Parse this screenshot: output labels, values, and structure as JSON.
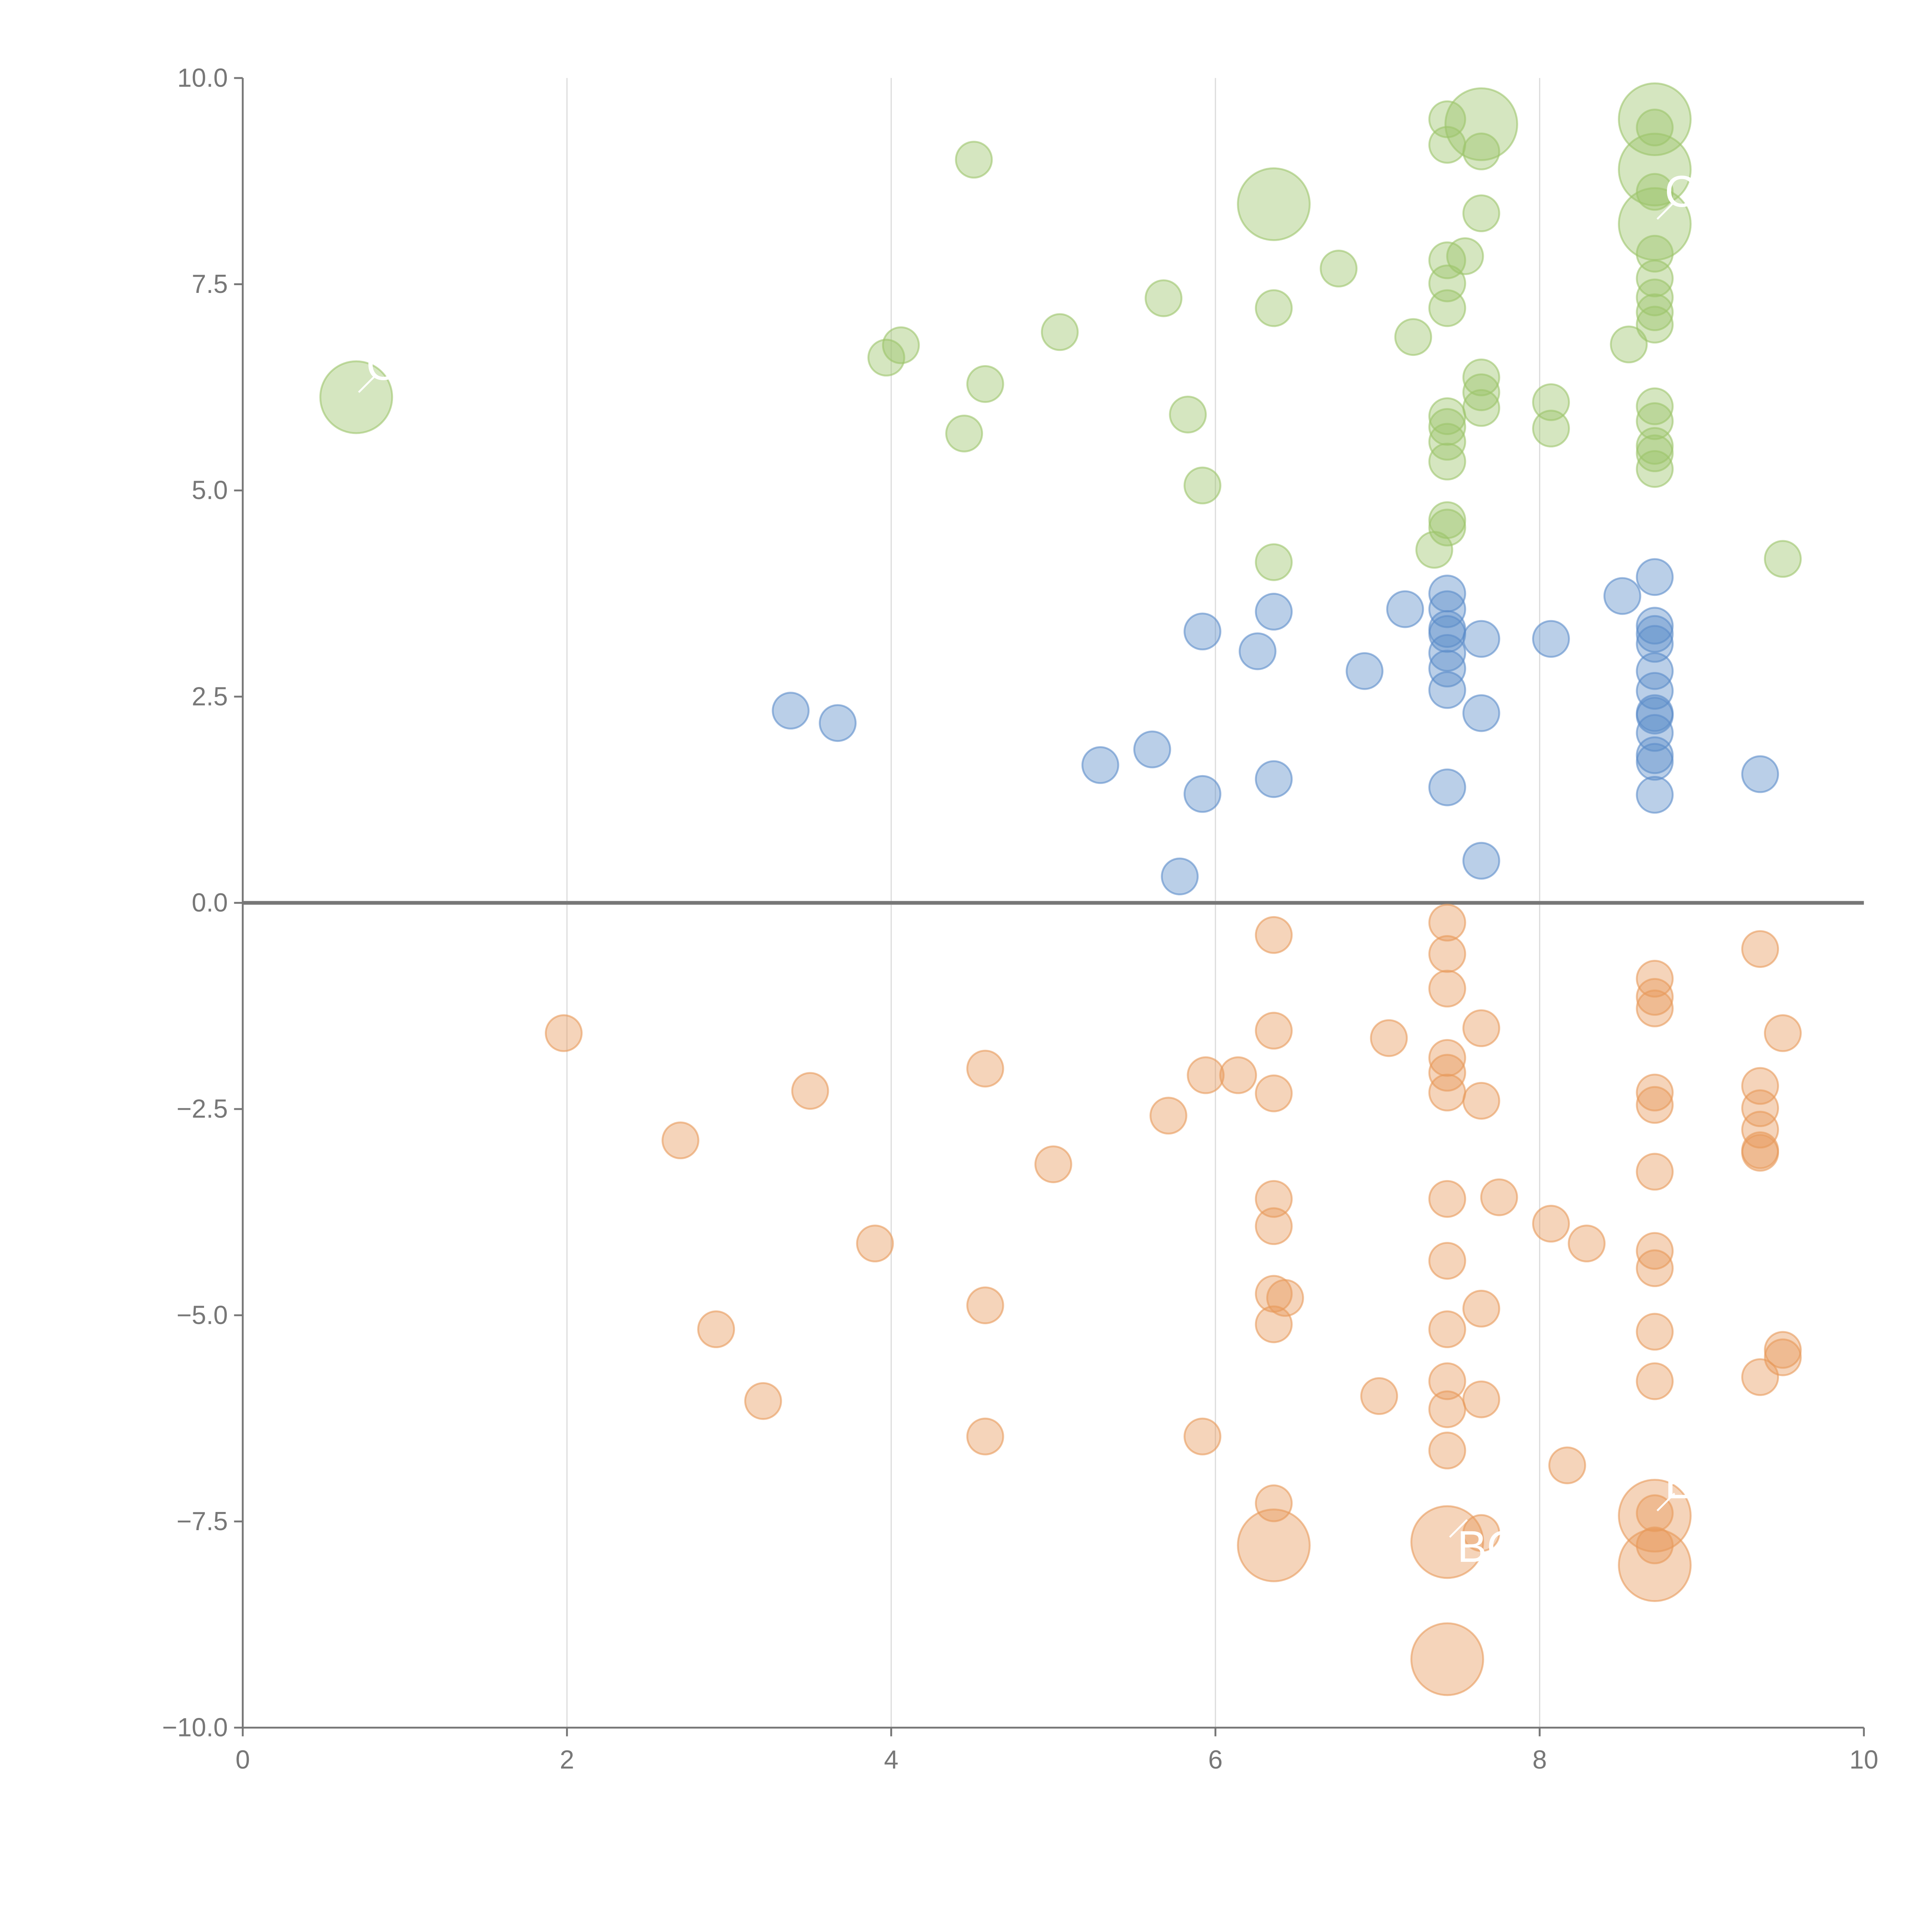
{
  "chart_data": {
    "type": "scatter",
    "title": "",
    "xlabel": "",
    "ylabel": "",
    "xlim": [
      0,
      10
    ],
    "ylim": [
      -10,
      10
    ],
    "grid": "vertical lines at x ticks",
    "legend": "none",
    "x_ticks": [
      "0",
      "2",
      "4",
      "6",
      "8",
      "10"
    ],
    "y_ticks": [
      "10.0",
      "7.5",
      "5.0",
      "2.5",
      "0.0",
      "−2.5",
      "−5.0",
      "−7.5",
      "−10.0"
    ],
    "point_format": "[x, y, relative_size]",
    "series": [
      {
        "name": "green",
        "color": "#9cc46a",
        "points": [
          [
            7.43,
            9.5,
            1
          ],
          [
            7.64,
            9.44,
            4
          ],
          [
            8.71,
            9.5,
            4
          ],
          [
            7.43,
            9.19,
            1
          ],
          [
            7.64,
            9.11,
            1
          ],
          [
            8.71,
            9.4,
            1
          ],
          [
            4.51,
            9.01,
            1
          ],
          [
            6.36,
            8.47,
            4
          ],
          [
            8.71,
            8.89,
            4
          ],
          [
            8.71,
            8.62,
            1
          ],
          [
            8.71,
            8.23,
            4
          ],
          [
            7.64,
            8.36,
            1
          ],
          [
            7.43,
            7.79,
            1
          ],
          [
            7.54,
            7.84,
            1
          ],
          [
            6.76,
            7.69,
            1
          ],
          [
            8.71,
            7.87,
            1
          ],
          [
            8.71,
            7.57,
            1
          ],
          [
            7.43,
            7.51,
            1
          ],
          [
            5.68,
            7.33,
            1
          ],
          [
            6.36,
            7.21,
            1
          ],
          [
            7.43,
            7.21,
            1
          ],
          [
            8.71,
            7.34,
            1
          ],
          [
            8.71,
            7.16,
            1
          ],
          [
            8.71,
            7.01,
            1
          ],
          [
            7.22,
            6.86,
            1
          ],
          [
            4.06,
            6.76,
            1
          ],
          [
            3.97,
            6.61,
            1
          ],
          [
            5.04,
            6.92,
            1
          ],
          [
            8.55,
            6.77,
            1
          ],
          [
            0.7,
            6.13,
            4
          ],
          [
            4.58,
            6.29,
            1
          ],
          [
            7.64,
            6.37,
            1
          ],
          [
            7.64,
            6.19,
            1
          ],
          [
            7.64,
            6.0,
            1
          ],
          [
            8.07,
            6.07,
            1
          ],
          [
            8.07,
            5.75,
            1
          ],
          [
            5.83,
            5.92,
            1
          ],
          [
            7.43,
            5.9,
            1
          ],
          [
            7.43,
            5.77,
            1
          ],
          [
            8.71,
            6.02,
            1
          ],
          [
            8.71,
            5.84,
            1
          ],
          [
            8.71,
            5.54,
            1
          ],
          [
            8.71,
            5.45,
            1
          ],
          [
            8.71,
            5.26,
            1
          ],
          [
            7.43,
            5.59,
            1
          ],
          [
            7.43,
            5.35,
            1
          ],
          [
            4.45,
            5.69,
            1
          ],
          [
            5.92,
            5.06,
            1
          ],
          [
            7.43,
            4.64,
            1
          ],
          [
            7.43,
            4.55,
            1
          ],
          [
            7.35,
            4.28,
            1
          ],
          [
            6.36,
            4.13,
            1
          ],
          [
            9.5,
            4.17,
            1
          ]
        ]
      },
      {
        "name": "blue",
        "color": "#5b8cc9",
        "points": [
          [
            8.71,
            3.95,
            1
          ],
          [
            8.51,
            3.72,
            1
          ],
          [
            7.43,
            3.75,
            1
          ],
          [
            7.43,
            3.56,
            1
          ],
          [
            7.17,
            3.56,
            1
          ],
          [
            6.36,
            3.53,
            1
          ],
          [
            7.43,
            3.32,
            1
          ],
          [
            7.43,
            3.26,
            1
          ],
          [
            5.92,
            3.29,
            1
          ],
          [
            7.64,
            3.2,
            1
          ],
          [
            8.07,
            3.2,
            1
          ],
          [
            8.71,
            3.36,
            1
          ],
          [
            8.71,
            3.26,
            1
          ],
          [
            8.71,
            3.14,
            1
          ],
          [
            6.26,
            3.05,
            1
          ],
          [
            7.43,
            3.03,
            1
          ],
          [
            7.43,
            2.84,
            1
          ],
          [
            6.92,
            2.81,
            1
          ],
          [
            8.71,
            2.81,
            1
          ],
          [
            8.71,
            2.57,
            1
          ],
          [
            7.43,
            2.58,
            1
          ],
          [
            3.38,
            2.33,
            1
          ],
          [
            8.71,
            2.3,
            1
          ],
          [
            8.71,
            2.27,
            1
          ],
          [
            7.64,
            2.3,
            1
          ],
          [
            3.67,
            2.18,
            1
          ],
          [
            8.71,
            2.06,
            1
          ],
          [
            5.61,
            1.86,
            1
          ],
          [
            5.29,
            1.67,
            1
          ],
          [
            8.71,
            1.79,
            1
          ],
          [
            8.71,
            1.71,
            1
          ],
          [
            9.36,
            1.56,
            1
          ],
          [
            6.36,
            1.5,
            1
          ],
          [
            7.43,
            1.4,
            1
          ],
          [
            5.92,
            1.32,
            1
          ],
          [
            8.71,
            1.31,
            1
          ],
          [
            7.64,
            0.51,
            1
          ],
          [
            5.78,
            0.32,
            1
          ]
        ]
      },
      {
        "name": "orange",
        "color": "#e8995a",
        "points": [
          [
            6.36,
            -0.39,
            1
          ],
          [
            7.43,
            -0.24,
            1
          ],
          [
            7.43,
            -0.62,
            1
          ],
          [
            7.43,
            -1.04,
            1
          ],
          [
            9.36,
            -0.56,
            1
          ],
          [
            8.71,
            -0.92,
            1
          ],
          [
            8.71,
            -1.14,
            1
          ],
          [
            8.71,
            -1.28,
            1
          ],
          [
            1.98,
            -1.58,
            1
          ],
          [
            6.36,
            -1.55,
            1
          ],
          [
            7.64,
            -1.52,
            1
          ],
          [
            7.07,
            -1.64,
            1
          ],
          [
            9.5,
            -1.58,
            1
          ],
          [
            4.58,
            -2.01,
            1
          ],
          [
            7.43,
            -1.88,
            1
          ],
          [
            7.43,
            -2.06,
            1
          ],
          [
            7.43,
            -2.3,
            1
          ],
          [
            5.94,
            -2.09,
            1
          ],
          [
            6.14,
            -2.09,
            1
          ],
          [
            3.5,
            -2.28,
            1
          ],
          [
            6.36,
            -2.31,
            1
          ],
          [
            7.64,
            -2.4,
            1
          ],
          [
            8.71,
            -2.3,
            1
          ],
          [
            8.71,
            -2.45,
            1
          ],
          [
            9.36,
            -2.22,
            1
          ],
          [
            9.36,
            -2.49,
            1
          ],
          [
            9.36,
            -2.75,
            1
          ],
          [
            9.36,
            -3.0,
            1
          ],
          [
            9.36,
            -3.03,
            1
          ],
          [
            5.71,
            -2.58,
            1
          ],
          [
            2.7,
            -2.88,
            1
          ],
          [
            5.0,
            -3.17,
            1
          ],
          [
            8.71,
            -3.26,
            1
          ],
          [
            6.36,
            -3.59,
            1
          ],
          [
            7.43,
            -3.59,
            1
          ],
          [
            7.75,
            -3.57,
            1
          ],
          [
            6.36,
            -3.92,
            1
          ],
          [
            8.07,
            -3.89,
            1
          ],
          [
            3.9,
            -4.13,
            1
          ],
          [
            8.29,
            -4.13,
            1
          ],
          [
            7.43,
            -4.34,
            1
          ],
          [
            8.71,
            -4.22,
            1
          ],
          [
            8.71,
            -4.43,
            1
          ],
          [
            6.36,
            -4.74,
            1
          ],
          [
            6.43,
            -4.79,
            1
          ],
          [
            4.58,
            -4.88,
            1
          ],
          [
            7.64,
            -4.92,
            1
          ],
          [
            2.92,
            -5.17,
            1
          ],
          [
            6.36,
            -5.11,
            1
          ],
          [
            7.43,
            -5.17,
            1
          ],
          [
            8.71,
            -5.2,
            1
          ],
          [
            9.5,
            -5.42,
            1
          ],
          [
            9.5,
            -5.51,
            1
          ],
          [
            7.43,
            -5.8,
            1
          ],
          [
            8.71,
            -5.8,
            1
          ],
          [
            9.36,
            -5.75,
            1
          ],
          [
            3.21,
            -6.04,
            1
          ],
          [
            7.01,
            -5.98,
            1
          ],
          [
            7.64,
            -6.02,
            1
          ],
          [
            7.43,
            -6.14,
            1
          ],
          [
            4.58,
            -6.47,
            1
          ],
          [
            5.92,
            -6.47,
            1
          ],
          [
            7.43,
            -6.64,
            1
          ],
          [
            8.17,
            -6.82,
            1
          ],
          [
            6.36,
            -7.28,
            1
          ],
          [
            8.71,
            -7.43,
            4
          ],
          [
            8.71,
            -7.4,
            1
          ],
          [
            7.43,
            -7.75,
            4
          ],
          [
            7.64,
            -7.64,
            1
          ],
          [
            6.36,
            -7.79,
            4
          ],
          [
            8.71,
            -7.79,
            1
          ],
          [
            8.71,
            -8.03,
            4
          ],
          [
            7.43,
            -9.17,
            4
          ]
        ]
      }
    ],
    "annotations": [
      {
        "text": "C",
        "x": 0.7,
        "y": 6.13
      },
      {
        "text": "C",
        "x": 8.71,
        "y": 8.23
      },
      {
        "text": "E",
        "x": 8.71,
        "y": -7.43
      },
      {
        "text": "BO",
        "x": 7.43,
        "y": -7.75
      }
    ]
  }
}
